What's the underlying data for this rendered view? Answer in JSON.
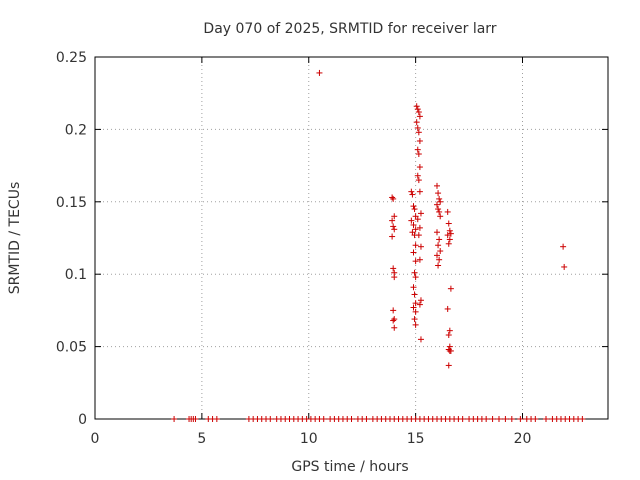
{
  "chart_data": {
    "type": "scatter",
    "title": "Day 070 of 2025, SRMTID for receiver larr",
    "xlabel": "GPS time / hours",
    "ylabel": "SRMTID / TECUs",
    "xlim": [
      0,
      24
    ],
    "ylim": [
      0,
      0.25
    ],
    "xticks": [
      0,
      5,
      10,
      15,
      20
    ],
    "yticks": [
      0,
      0.05,
      0.1,
      0.15,
      0.2,
      0.25
    ],
    "xtick_labels": [
      "0",
      "5",
      "10",
      "15",
      "20"
    ],
    "ytick_labels": [
      "0",
      "0.05",
      "0.1",
      "0.15",
      "0.2",
      "0.25"
    ],
    "grid": true,
    "marker": "plus",
    "color": "#cc0000",
    "series": [
      {
        "x": [
          10.5,
          13.9,
          13.95,
          14.0,
          13.9,
          13.95,
          14.0,
          13.9,
          13.95,
          14.0,
          14.0,
          13.95,
          14.0,
          13.95,
          14.0,
          14.8,
          14.85,
          14.9,
          14.95,
          15.0,
          14.8,
          14.9,
          15.0,
          14.85,
          14.95,
          15.0,
          14.9,
          15.0,
          14.95,
          15.0,
          14.9,
          14.95,
          15.0,
          14.9,
          15.0,
          14.95,
          15.0,
          15.05,
          15.1,
          15.15,
          15.2,
          15.05,
          15.1,
          15.15,
          15.2,
          15.1,
          15.15,
          15.2,
          15.1,
          15.15,
          15.2,
          15.25,
          15.1,
          15.2,
          15.15,
          15.25,
          15.2,
          15.25,
          15.2,
          15.25,
          16.0,
          16.05,
          16.1,
          16.15,
          16.0,
          16.05,
          16.1,
          16.15,
          16.0,
          16.1,
          16.05,
          16.15,
          16.0,
          16.1,
          16.05,
          16.5,
          16.55,
          16.6,
          16.65,
          16.5,
          16.6,
          16.55,
          16.65,
          16.5,
          16.6,
          16.55,
          16.6,
          16.55,
          16.6,
          16.65,
          16.55,
          21.9,
          21.95
        ],
        "y": [
          0.239,
          0.153,
          0.152,
          0.14,
          0.137,
          0.133,
          0.131,
          0.126,
          0.104,
          0.101,
          0.098,
          0.075,
          0.069,
          0.068,
          0.063,
          0.157,
          0.155,
          0.147,
          0.145,
          0.14,
          0.137,
          0.134,
          0.131,
          0.129,
          0.127,
          0.12,
          0.115,
          0.109,
          0.101,
          0.098,
          0.091,
          0.086,
          0.08,
          0.077,
          0.074,
          0.069,
          0.065,
          0.216,
          0.214,
          0.212,
          0.209,
          0.205,
          0.201,
          0.198,
          0.192,
          0.186,
          0.183,
          0.174,
          0.168,
          0.165,
          0.157,
          0.142,
          0.138,
          0.132,
          0.127,
          0.119,
          0.11,
          0.082,
          0.079,
          0.055,
          0.161,
          0.156,
          0.152,
          0.15,
          0.148,
          0.145,
          0.143,
          0.14,
          0.129,
          0.124,
          0.12,
          0.116,
          0.113,
          0.11,
          0.106,
          0.143,
          0.135,
          0.13,
          0.128,
          0.127,
          0.124,
          0.121,
          0.09,
          0.076,
          0.061,
          0.058,
          0.05,
          0.048,
          0.047,
          0.047,
          0.037,
          0.119,
          0.105
        ]
      },
      {
        "x": [
          3.7,
          4.4,
          4.5,
          4.6,
          4.7,
          5.3,
          5.5,
          5.7,
          7.2,
          7.4,
          7.6,
          7.8,
          8.0,
          8.2,
          8.5,
          8.7,
          8.9,
          9.1,
          9.3,
          9.5,
          9.7,
          9.9,
          10.1,
          10.3,
          10.5,
          10.7,
          11.0,
          11.2,
          11.4,
          11.6,
          11.8,
          12.0,
          12.3,
          12.5,
          12.7,
          13.0,
          13.2,
          13.4,
          13.6,
          13.8,
          14.0,
          14.2,
          14.4,
          14.6,
          14.8,
          15.0,
          15.2,
          15.4,
          15.6,
          15.8,
          16.0,
          16.2,
          16.4,
          16.6,
          16.8,
          17.0,
          17.2,
          17.5,
          17.7,
          17.9,
          18.1,
          18.3,
          18.6,
          18.9,
          19.2,
          19.5,
          19.9,
          20.2,
          20.4,
          20.6,
          21.1,
          21.4,
          21.6,
          21.8,
          22.0,
          22.2,
          22.4,
          22.6,
          22.8
        ],
        "y": [
          0,
          0,
          0,
          0,
          0,
          0,
          0,
          0,
          0,
          0,
          0,
          0,
          0,
          0,
          0,
          0,
          0,
          0,
          0,
          0,
          0,
          0,
          0,
          0,
          0,
          0,
          0,
          0,
          0,
          0,
          0,
          0,
          0,
          0,
          0,
          0,
          0,
          0,
          0,
          0,
          0,
          0,
          0,
          0,
          0,
          0,
          0,
          0,
          0,
          0,
          0,
          0,
          0,
          0,
          0,
          0,
          0,
          0,
          0,
          0,
          0,
          0,
          0,
          0,
          0,
          0,
          0,
          0,
          0,
          0,
          0,
          0,
          0,
          0,
          0,
          0,
          0,
          0,
          0
        ]
      }
    ]
  }
}
